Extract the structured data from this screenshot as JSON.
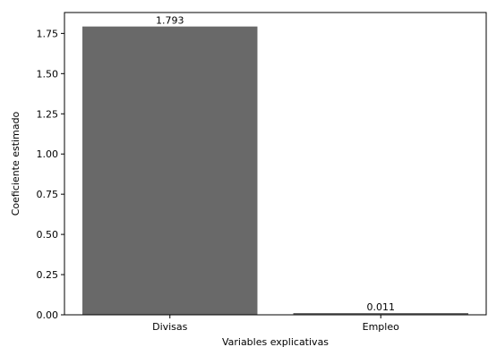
{
  "chart_data": {
    "type": "bar",
    "categories": [
      "Divisas",
      "Empleo"
    ],
    "values": [
      1.793,
      0.011
    ],
    "data_labels": [
      "1.793",
      "0.011"
    ],
    "title": "",
    "xlabel": "Variables explicativas",
    "ylabel": "Coeficiente estimado",
    "ylim": [
      0,
      1.88
    ],
    "yticks": [
      0.0,
      0.25,
      0.5,
      0.75,
      1.0,
      1.25,
      1.5,
      1.75
    ],
    "ytick_labels": [
      "0.00",
      "0.25",
      "0.50",
      "0.75",
      "1.00",
      "1.25",
      "1.50",
      "1.75"
    ],
    "bar_color": "#696969",
    "grid": false
  }
}
